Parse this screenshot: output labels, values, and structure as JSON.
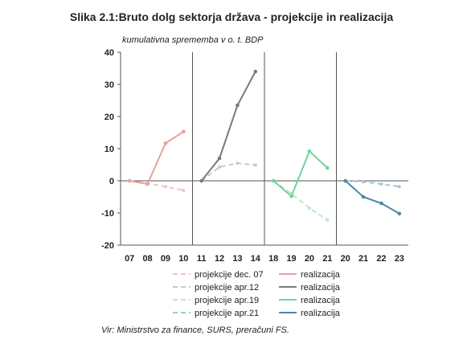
{
  "title": "Slika 2.1:Bruto dolg sektorja država - projekcije in realizacija",
  "subtitle": "kumulativna sprememba v o. t. BDP",
  "source": "Vir: Ministrstvo za finance, SURS, preračuni FS.",
  "chart_data": {
    "type": "line",
    "ylim": [
      -20,
      40
    ],
    "yticks": [
      -20,
      -10,
      0,
      10,
      20,
      30,
      40
    ],
    "grid": false,
    "legend_position": "bottom",
    "panels": [
      {
        "x": [
          "07",
          "08",
          "09",
          "10"
        ],
        "color": "#e6a19c",
        "projection_color": "#f0c4c0",
        "realizacija": [
          0,
          -1,
          11.7,
          15.3
        ],
        "projekcija": [
          0,
          -0.8,
          -1.8,
          -3
        ]
      },
      {
        "x": [
          "11",
          "12",
          "13",
          "14"
        ],
        "color": "#7a7a7a",
        "projection_color": "#c8c8c8",
        "realizacija": [
          0,
          7,
          23.5,
          34
        ],
        "projekcija": [
          0,
          4.3,
          5.5,
          4.9
        ]
      },
      {
        "x": [
          "18",
          "19",
          "20",
          "21"
        ],
        "color": "#71d49b",
        "projection_color": "#b8e9cc",
        "realizacija": [
          0,
          -4.8,
          9.2,
          4
        ],
        "projekcija": [
          0,
          -4,
          -8.5,
          -12.2
        ]
      },
      {
        "x": [
          "20",
          "21",
          "22",
          "23"
        ],
        "color": "#4a88a6",
        "projection_color": "#a6c6d6",
        "realizacija": [
          0,
          -5,
          -7,
          -10.2
        ],
        "projekcija": [
          0,
          -0.3,
          -1,
          -1.8
        ]
      }
    ],
    "legend": [
      {
        "label": "projekcije dec. 07",
        "style": "dashed",
        "color": "#f0c4c0"
      },
      {
        "label": "realizacija",
        "style": "solid",
        "color": "#e6a19c"
      },
      {
        "label": "projekcije apr.12",
        "style": "dashed",
        "color": "#c8c8c8"
      },
      {
        "label": "realizacija",
        "style": "solid",
        "color": "#7a7a7a"
      },
      {
        "label": "projekcije apr.19",
        "style": "dashed",
        "color": "#b8e9cc"
      },
      {
        "label": "realizacija",
        "style": "solid",
        "color": "#71d49b"
      },
      {
        "label": "projekcije apr.21",
        "style": "dashed",
        "color": "#a6c6d6"
      },
      {
        "label": "realizacija",
        "style": "solid",
        "color": "#4a88a6"
      }
    ]
  }
}
